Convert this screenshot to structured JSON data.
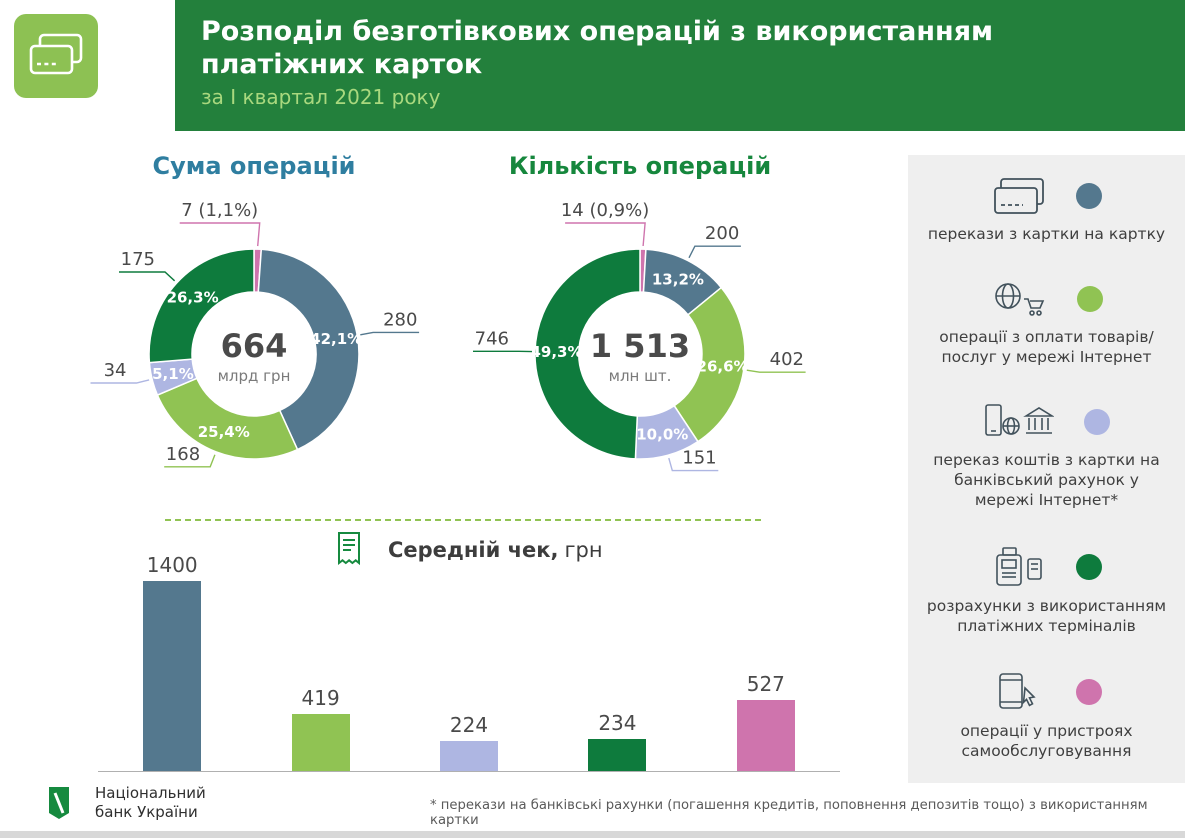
{
  "palette": {
    "slate": "#54788e",
    "green_dark": "#0e7b3d",
    "green_light": "#90c353",
    "lavender": "#aeb6e2",
    "pink": "#cf74ad",
    "header_green": "#23803c",
    "header_subtitle": "#a9d87e",
    "icon_green": "#8dc153",
    "title_blue": "#2f7ea0",
    "title_green": "#16873d",
    "text_dark": "#4a4a4a",
    "panel_bg": "#efefef"
  },
  "header": {
    "title_line1": "Розподіл безготівкових операцій з використанням",
    "title_line2": "платіжних карток",
    "subtitle": "за І квартал 2021 року"
  },
  "chart_data": [
    {
      "type": "pie",
      "variant": "donut",
      "title": "Сума операцій",
      "center_value": "664",
      "center_unit": "млрд грн",
      "legend_position": "right-panel",
      "segments": [
        {
          "name": "операції у пристроях самообслуговування",
          "value": 7,
          "pct": 1.1,
          "pct_label": "1,1%",
          "callout": "7 (1,1%)",
          "color": "pink"
        },
        {
          "name": "перекази з картки на картку",
          "value": 280,
          "pct": 42.1,
          "pct_label": "42,1%",
          "callout": "280",
          "color": "slate"
        },
        {
          "name": "операції з оплати товарів/послуг у мережі Інтернет",
          "value": 168,
          "pct": 25.4,
          "pct_label": "25,4%",
          "callout": "168",
          "color": "green_light"
        },
        {
          "name": "переказ коштів з картки на банківський рахунок у мережі Інтернет",
          "value": 34,
          "pct": 5.1,
          "pct_label": "5,1%",
          "callout": "34",
          "color": "lavender"
        },
        {
          "name": "розрахунки з використанням платіжних терміналів",
          "value": 175,
          "pct": 26.3,
          "pct_label": "26,3%",
          "callout": "175",
          "color": "green_dark"
        }
      ]
    },
    {
      "type": "pie",
      "variant": "donut",
      "title": "Кількість операцій",
      "center_value": "1 513",
      "center_unit": "млн шт.",
      "legend_position": "right-panel",
      "segments": [
        {
          "name": "операції у пристроях самообслуговування",
          "value": 14,
          "pct": 0.9,
          "pct_label": "0,9%",
          "callout": "14 (0,9%)",
          "color": "pink"
        },
        {
          "name": "перекази з картки на картку",
          "value": 200,
          "pct": 13.2,
          "pct_label": "13,2%",
          "callout": "200",
          "color": "slate"
        },
        {
          "name": "операції з оплати товарів/послуг у мережі Інтернет",
          "value": 402,
          "pct": 26.6,
          "pct_label": "26,6%",
          "callout": "402",
          "color": "green_light"
        },
        {
          "name": "переказ коштів з картки на банківський рахунок у мережі Інтернет",
          "value": 151,
          "pct": 10.0,
          "pct_label": "10,0%",
          "callout": "151",
          "color": "lavender"
        },
        {
          "name": "розрахунки з використанням платіжних терміналів",
          "value": 746,
          "pct": 49.3,
          "pct_label": "49,3%",
          "callout": "746",
          "color": "green_dark"
        }
      ]
    },
    {
      "type": "bar",
      "title": "Середній чек, грн",
      "title_bold": "Середній чек,",
      "title_unit": "грн",
      "categories": [
        "перекази з картки на картку",
        "операції з оплати товарів/послуг у мережі Інтернет",
        "переказ коштів з картки на банківський рахунок у мережі Інтернет",
        "розрахунки з використанням платіжних терміналів",
        "операції у пристроях самообслуговування"
      ],
      "values": [
        1400,
        419,
        224,
        234,
        527
      ],
      "colors": [
        "slate",
        "green_light",
        "lavender",
        "green_dark",
        "pink"
      ],
      "ylim": [
        0,
        1400
      ],
      "grid": false
    }
  ],
  "legend": {
    "items": [
      {
        "icon": "card-transfer-icon",
        "color": "slate",
        "label": "перекази з картки на картку"
      },
      {
        "icon": "internet-shopping-icon",
        "color": "green_light",
        "label": "операції з оплати товарів/ послуг у мережі Інтернет"
      },
      {
        "icon": "card-to-bank-icon",
        "color": "lavender",
        "label": "переказ коштів з картки на банківський рахунок у мережі Інтернет*"
      },
      {
        "icon": "pos-terminal-icon",
        "color": "green_dark",
        "label": "розрахунки з використанням платіжних терміналів"
      },
      {
        "icon": "self-service-icon",
        "color": "pink",
        "label": "операції у пристроях самообслуговування"
      }
    ]
  },
  "footer": {
    "logo_line1": "Національний",
    "logo_line2": "банк України",
    "footnote": "* перекази на банківські рахунки (погашення кредитів, поповнення депозитів тощо) з використанням картки"
  }
}
